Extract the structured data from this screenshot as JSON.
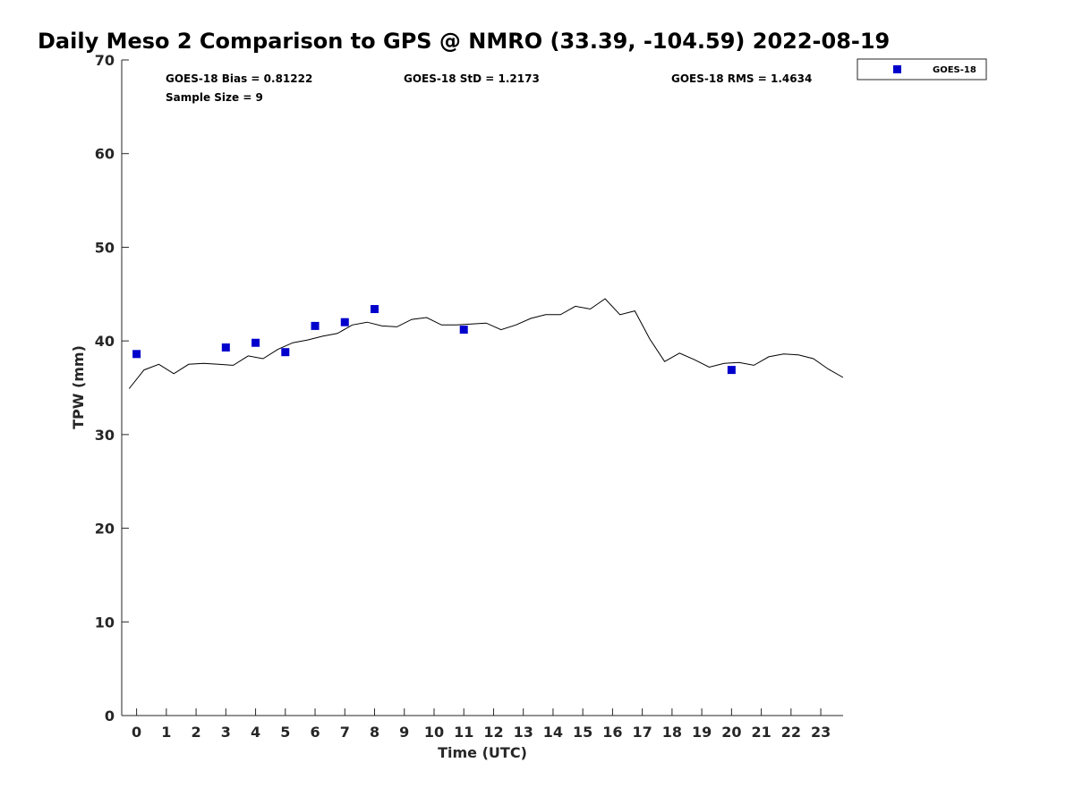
{
  "chart_data": {
    "type": "scatter",
    "title": "Daily Meso 2 Comparison to GPS @ NMRO (33.39, -104.59) 2022-08-19",
    "xlabel": "Time (UTC)",
    "ylabel": "TPW (mm)",
    "xlim": [
      -0.5,
      23.75
    ],
    "ylim": [
      0,
      70
    ],
    "x_ticks": [
      "0",
      "1",
      "2",
      "3",
      "4",
      "5",
      "6",
      "7",
      "8",
      "9",
      "10",
      "11",
      "12",
      "13",
      "14",
      "15",
      "16",
      "17",
      "18",
      "19",
      "20",
      "21",
      "22",
      "23"
    ],
    "y_ticks": [
      "0",
      "10",
      "20",
      "30",
      "40",
      "50",
      "60",
      "70"
    ],
    "grid": false,
    "legend_position": "top-right",
    "series": [
      {
        "name": "GPS",
        "kind": "line",
        "color": "#000000",
        "x": [
          -0.25,
          0.25,
          0.75,
          1.25,
          1.75,
          2.25,
          2.75,
          3.25,
          3.75,
          4.25,
          4.75,
          5.25,
          5.75,
          6.25,
          6.75,
          7.25,
          7.75,
          8.25,
          8.75,
          9.25,
          9.75,
          10.25,
          10.75,
          11.25,
          11.75,
          12.25,
          12.75,
          13.25,
          13.75,
          14.25,
          14.75,
          15.25,
          15.75,
          16.25,
          16.75,
          17.25,
          17.75,
          18.25,
          18.75,
          19.25,
          19.75,
          20.25,
          20.75,
          21.25,
          21.75,
          22.25,
          22.75,
          23.25,
          23.75
        ],
        "y": [
          34.9,
          36.9,
          37.5,
          36.5,
          37.5,
          37.6,
          37.5,
          37.4,
          38.4,
          38.1,
          39.1,
          39.8,
          40.1,
          40.5,
          40.8,
          41.7,
          42.0,
          41.6,
          41.5,
          42.3,
          42.5,
          41.7,
          41.7,
          41.8,
          41.9,
          41.2,
          41.7,
          42.4,
          42.8,
          42.8,
          43.7,
          43.4,
          44.5,
          42.8,
          43.2,
          40.2,
          37.8,
          38.7,
          38.0,
          37.2,
          37.6,
          37.7,
          37.4,
          38.3,
          38.6,
          38.5,
          38.1,
          37.0,
          36.1
        ]
      },
      {
        "name": "GOES-18",
        "kind": "scatter",
        "color": "#0000CC",
        "x": [
          0,
          3,
          4,
          5,
          6,
          7,
          8,
          11,
          20
        ],
        "y": [
          38.6,
          39.3,
          39.8,
          38.8,
          41.6,
          42.0,
          43.4,
          41.2,
          36.9
        ]
      }
    ]
  },
  "stats": {
    "bias": "GOES-18 Bias = 0.81222",
    "std": "GOES-18 StD = 1.2173",
    "rms": "GOES-18 RMS = 1.4634",
    "sample": "Sample Size = 9"
  },
  "legend": {
    "label": "GOES-18"
  }
}
